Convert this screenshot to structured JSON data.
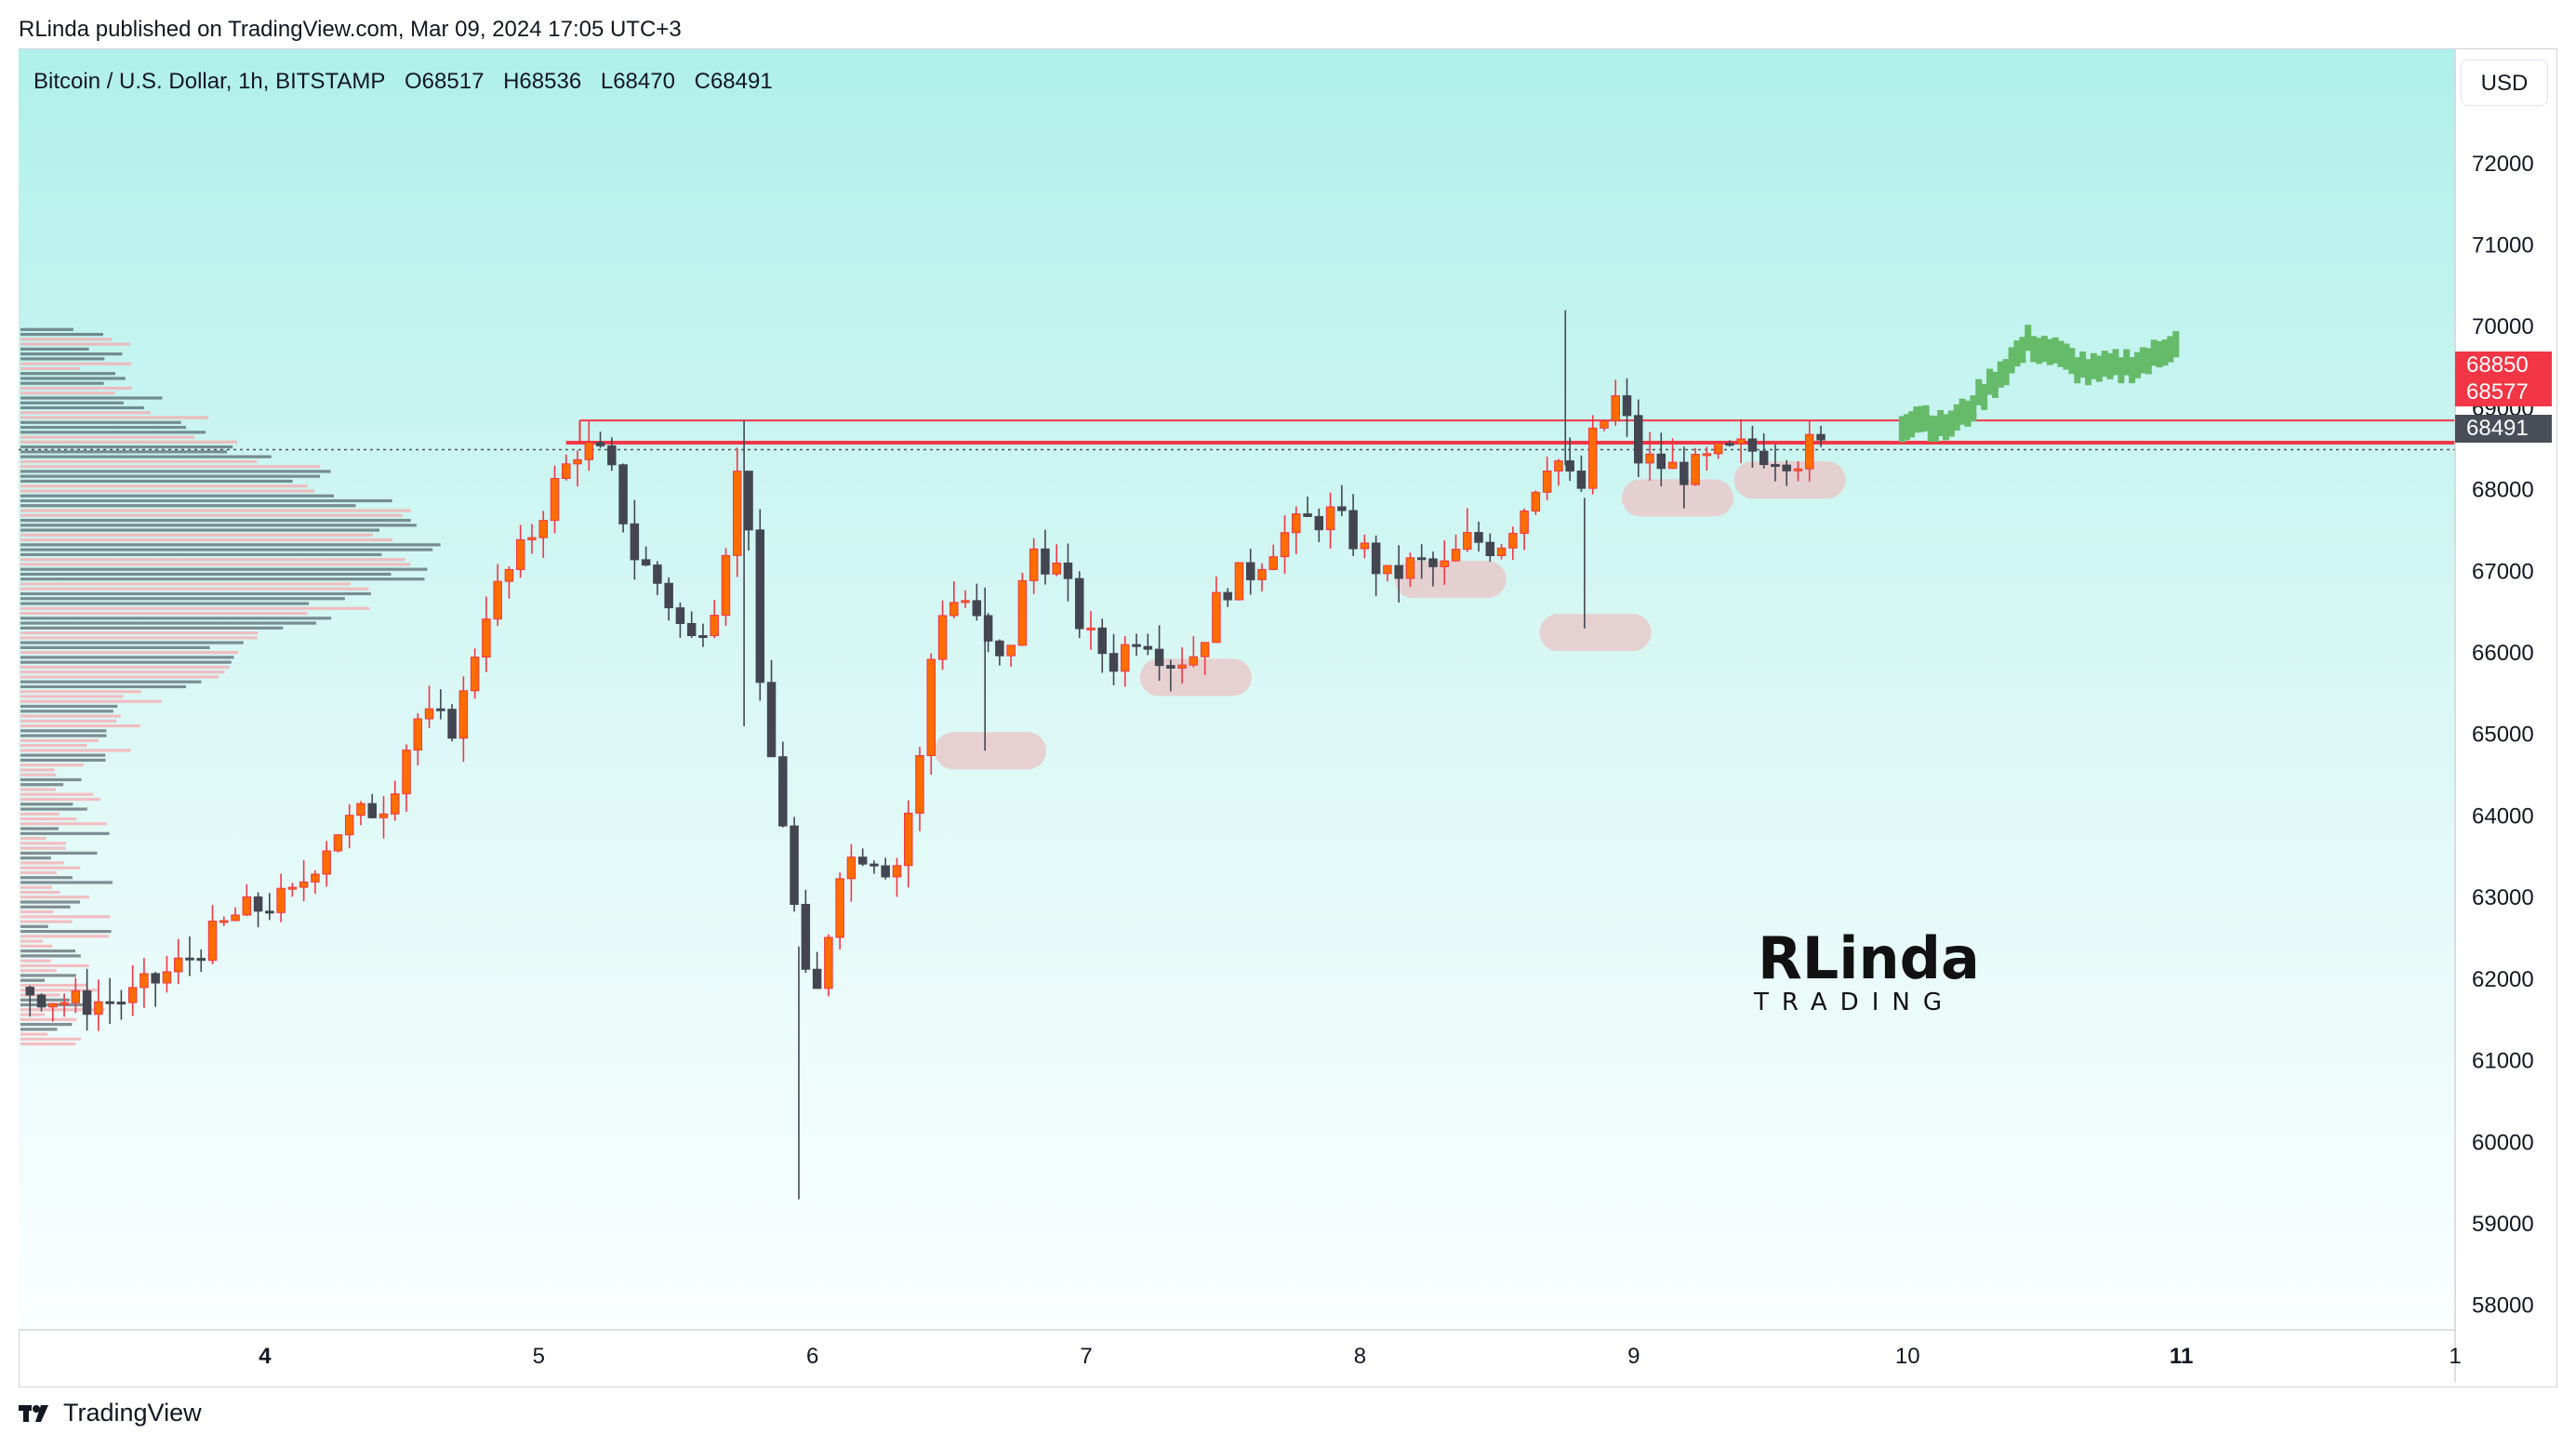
{
  "header": {
    "publisher": "RLinda published on TradingView.com, Mar 09, 2024 17:05 UTC+3"
  },
  "legend": {
    "symbol": "Bitcoin / U.S. Dollar, 1h, BITSTAMP",
    "open": "O68517",
    "high": "H68536",
    "low": "L68470",
    "close": "C68491"
  },
  "currency_button": "USD",
  "price_tags": [
    {
      "label": "68850",
      "value": 68850,
      "color": "#f23645"
    },
    {
      "label": "68577",
      "value": 68577,
      "color": "#f23645"
    },
    {
      "label": "68491",
      "value": 68491,
      "color": "#4a4e59"
    }
  ],
  "watermark": {
    "line1": "RLinda",
    "line2": "TRADING"
  },
  "footer": {
    "brand": "TradingView"
  },
  "colors": {
    "bull": "#ff6d00",
    "bull_border": "#f23645",
    "bear": "#434651",
    "forecast": "#66bb6a",
    "resistance": "#f23645",
    "zone": "#e7cccc",
    "profile_red": "#f7a9ae",
    "profile_dark": "#2e3440"
  },
  "chart_data": {
    "type": "candlestick",
    "title": "Bitcoin / U.S. Dollar, 1h, BITSTAMP",
    "x_ticks": [
      {
        "label": "4",
        "day": 4,
        "bold": true
      },
      {
        "label": "5",
        "day": 5,
        "bold": false
      },
      {
        "label": "6",
        "day": 6,
        "bold": false
      },
      {
        "label": "7",
        "day": 7,
        "bold": false
      },
      {
        "label": "8",
        "day": 8,
        "bold": false
      },
      {
        "label": "9",
        "day": 9,
        "bold": false
      },
      {
        "label": "10",
        "day": 10,
        "bold": false
      },
      {
        "label": "11",
        "day": 11,
        "bold": true
      },
      {
        "label": "1",
        "day": 12,
        "bold": false
      }
    ],
    "y_ticks": [
      58000,
      59000,
      60000,
      61000,
      62000,
      63000,
      64000,
      65000,
      66000,
      67000,
      68000,
      69000,
      70000,
      71000,
      72000
    ],
    "ylim": [
      57700,
      73400
    ],
    "xlim": [
      3.1,
      12.0
    ],
    "current_price": 68491,
    "resistance_band": [
      68577,
      68850
    ],
    "support_zones": [
      {
        "day": 6.65,
        "price": 64800
      },
      {
        "day": 7.4,
        "price": 65700
      },
      {
        "day": 8.33,
        "price": 66900
      },
      {
        "day": 8.86,
        "price": 66250
      },
      {
        "day": 9.16,
        "price": 67900
      },
      {
        "day": 9.57,
        "price": 68120
      }
    ],
    "key_points": [
      [
        3.1,
        61900
      ],
      [
        3.3,
        61700
      ],
      [
        3.5,
        61750
      ],
      [
        3.7,
        62200
      ],
      [
        3.9,
        62800
      ],
      [
        4.0,
        62900
      ],
      [
        4.1,
        63000
      ],
      [
        4.25,
        63800
      ],
      [
        4.45,
        64200
      ],
      [
        4.55,
        65200
      ],
      [
        4.7,
        65100
      ],
      [
        4.8,
        66500
      ],
      [
        4.95,
        67300
      ],
      [
        5.05,
        68000
      ],
      [
        5.15,
        68550
      ],
      [
        5.25,
        68350
      ],
      [
        5.35,
        67200
      ],
      [
        5.45,
        66800
      ],
      [
        5.55,
        66100
      ],
      [
        5.65,
        66700
      ],
      [
        5.75,
        68650
      ],
      [
        5.8,
        65600
      ],
      [
        5.9,
        63800
      ],
      [
        5.95,
        62400
      ],
      [
        6.0,
        61500
      ],
      [
        6.1,
        63400
      ],
      [
        6.2,
        63600
      ],
      [
        6.3,
        63300
      ],
      [
        6.4,
        64800
      ],
      [
        6.45,
        66500
      ],
      [
        6.55,
        66700
      ],
      [
        6.65,
        66000
      ],
      [
        6.7,
        65800
      ],
      [
        6.8,
        67300
      ],
      [
        6.9,
        67000
      ],
      [
        7.0,
        66200
      ],
      [
        7.1,
        65900
      ],
      [
        7.2,
        66300
      ],
      [
        7.3,
        65900
      ],
      [
        7.4,
        66000
      ],
      [
        7.5,
        66800
      ],
      [
        7.6,
        67000
      ],
      [
        7.7,
        67400
      ],
      [
        7.8,
        67600
      ],
      [
        7.9,
        67700
      ],
      [
        8.0,
        67300
      ],
      [
        8.1,
        66900
      ],
      [
        8.2,
        67100
      ],
      [
        8.3,
        67000
      ],
      [
        8.4,
        67400
      ],
      [
        8.5,
        67300
      ],
      [
        8.6,
        67800
      ],
      [
        8.7,
        68500
      ],
      [
        8.8,
        67900
      ],
      [
        8.85,
        68600
      ],
      [
        8.95,
        69200
      ],
      [
        9.0,
        68400
      ],
      [
        9.1,
        68300
      ],
      [
        9.2,
        68200
      ],
      [
        9.3,
        68400
      ],
      [
        9.4,
        68500
      ],
      [
        9.5,
        68450
      ],
      [
        9.6,
        68400
      ],
      [
        9.65,
        68550
      ],
      [
        9.7,
        68491
      ]
    ],
    "forecast": [
      [
        9.98,
        68800
      ],
      [
        10.05,
        68900
      ],
      [
        10.12,
        68750
      ],
      [
        10.2,
        68900
      ],
      [
        10.28,
        69200
      ],
      [
        10.36,
        69500
      ],
      [
        10.44,
        69800
      ],
      [
        10.52,
        69700
      ],
      [
        10.6,
        69550
      ],
      [
        10.68,
        69450
      ],
      [
        10.76,
        69500
      ],
      [
        10.84,
        69550
      ],
      [
        10.92,
        69650
      ],
      [
        11.0,
        69900
      ]
    ]
  }
}
